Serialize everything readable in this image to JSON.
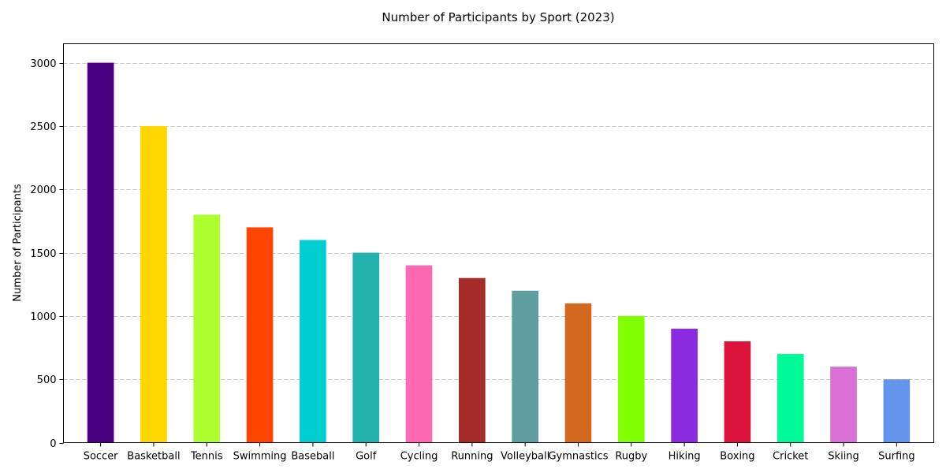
{
  "chart_data": {
    "type": "bar",
    "title": "Number of Participants by Sport (2023)",
    "xlabel": "",
    "ylabel": "Number of Participants",
    "categories": [
      "Soccer",
      "Basketball",
      "Tennis",
      "Swimming",
      "Baseball",
      "Golf",
      "Cycling",
      "Running",
      "Volleyball",
      "Gymnastics",
      "Rugby",
      "Hiking",
      "Boxing",
      "Cricket",
      "Skiing",
      "Surfing"
    ],
    "values": [
      3000,
      2500,
      1800,
      1700,
      1600,
      1500,
      1400,
      1300,
      1200,
      1100,
      1000,
      900,
      800,
      700,
      600,
      500
    ],
    "colors": [
      "#4b0082",
      "#ffd700",
      "#adff2f",
      "#ff4500",
      "#00ced1",
      "#20b2aa",
      "#ff69b4",
      "#a52a2a",
      "#5f9ea0",
      "#d2691e",
      "#7fff00",
      "#8a2be2",
      "#dc143c",
      "#00fa9a",
      "#da70d6",
      "#6495ed"
    ],
    "ylim": [
      0,
      3150
    ],
    "yticks": [
      0,
      500,
      1000,
      1500,
      2000,
      2500,
      3000
    ],
    "grid": "y-dashed"
  }
}
